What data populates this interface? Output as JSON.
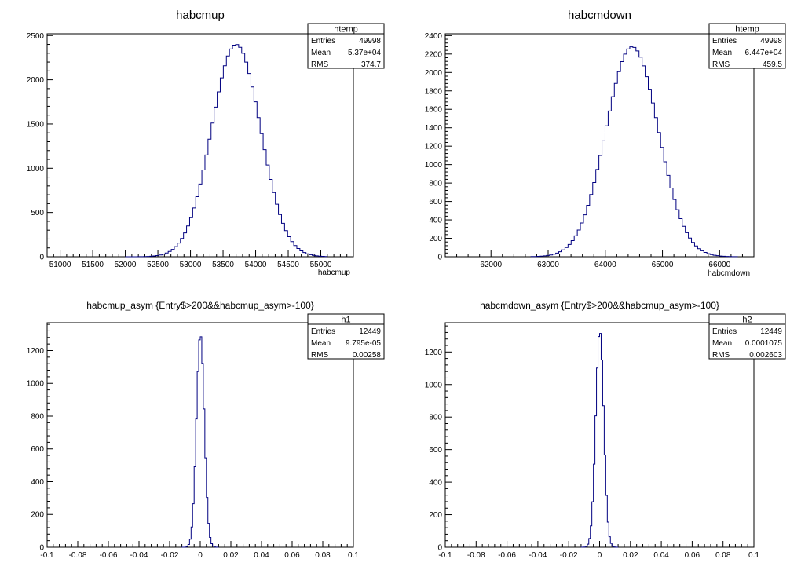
{
  "chart_data": [
    {
      "type": "bar",
      "title": "habcmup",
      "xlabel": "habcmup",
      "ylabel": "",
      "xlim": [
        50800,
        55500
      ],
      "ylim": [
        0,
        2520
      ],
      "xticks": [
        51000,
        51500,
        52000,
        52500,
        53000,
        53500,
        54000,
        54500,
        55000
      ],
      "xtick_labels": [
        "51000",
        "51500",
        "52000",
        "52500",
        "53000",
        "53500",
        "54000",
        "54500",
        "55000"
      ],
      "yticks": [
        0,
        500,
        1000,
        1500,
        2000,
        2500
      ],
      "ytick_labels": [
        "0",
        "500",
        "1000",
        "1500",
        "2000",
        "2500"
      ],
      "grid": false,
      "legend": "none",
      "line_color": "#000080",
      "stats": {
        "name": "htemp",
        "rows": [
          {
            "label": "Entries",
            "value": "49998"
          },
          {
            "label": "Mean",
            "value": "5.37e+04"
          },
          {
            "label": "RMS",
            "value": "374.7"
          }
        ]
      },
      "histogram": {
        "mean": 53700,
        "rms": 374.7,
        "peak": 2400,
        "bin_width": 47,
        "x_min": 52000,
        "x_max": 55100
      }
    },
    {
      "type": "bar",
      "title": "habcmdown",
      "xlabel": "habcmdown",
      "ylabel": "",
      "xlim": [
        61200,
        66600
      ],
      "ylim": [
        0,
        2420
      ],
      "xticks": [
        62000,
        63000,
        64000,
        65000,
        66000
      ],
      "xtick_labels": [
        "62000",
        "63000",
        "64000",
        "65000",
        "66000"
      ],
      "yticks": [
        0,
        200,
        400,
        600,
        800,
        1000,
        1200,
        1400,
        1600,
        1800,
        2000,
        2200,
        2400
      ],
      "ytick_labels": [
        "0",
        "200",
        "400",
        "600",
        "800",
        "1000",
        "1200",
        "1400",
        "1600",
        "1800",
        "2000",
        "2200",
        "2400"
      ],
      "grid": false,
      "legend": "none",
      "line_color": "#000080",
      "stats": {
        "name": "htemp",
        "rows": [
          {
            "label": "Entries",
            "value": "49998"
          },
          {
            "label": "Mean",
            "value": "6.447e+04"
          },
          {
            "label": "RMS",
            "value": "459.5"
          }
        ]
      },
      "histogram": {
        "mean": 64470,
        "rms": 459.5,
        "peak": 2280,
        "bin_width": 54,
        "x_min": 62700,
        "x_max": 66300
      }
    },
    {
      "type": "bar",
      "title": "habcmup_asym {Entry$>200&&habcmup_asym>-100}",
      "xlabel": "",
      "ylabel": "",
      "xlim": [
        -0.1,
        0.1
      ],
      "ylim": [
        0,
        1370
      ],
      "xticks": [
        -0.1,
        -0.08,
        -0.06,
        -0.04,
        -0.02,
        0,
        0.02,
        0.04,
        0.06,
        0.08,
        0.1
      ],
      "xtick_labels": [
        "-0.1",
        "-0.08",
        "-0.06",
        "-0.04",
        "-0.02",
        "0",
        "0.02",
        "0.04",
        "0.06",
        "0.08",
        "0.1"
      ],
      "yticks": [
        0,
        200,
        400,
        600,
        800,
        1000,
        1200
      ],
      "ytick_labels": [
        "0",
        "200",
        "400",
        "600",
        "800",
        "1000",
        "1200"
      ],
      "grid": false,
      "legend": "none",
      "line_color": "#000080",
      "stats": {
        "name": "h1",
        "rows": [
          {
            "label": "Entries",
            "value": "12449"
          },
          {
            "label": "Mean",
            "value": "9.795e-05"
          },
          {
            "label": "RMS",
            "value": "0.00258"
          }
        ]
      },
      "histogram": {
        "mean": 0.0001,
        "rms": 0.00258,
        "peak": 1300,
        "bin_width": 0.001,
        "x_min": -0.012,
        "x_max": 0.012
      }
    },
    {
      "type": "bar",
      "title": "habcmdown_asym {Entry$>200&&habcmup_asym>-100}",
      "xlabel": "",
      "ylabel": "",
      "xlim": [
        -0.1,
        0.1
      ],
      "ylim": [
        0,
        1380
      ],
      "xticks": [
        -0.1,
        -0.08,
        -0.06,
        -0.04,
        -0.02,
        0,
        0.02,
        0.04,
        0.06,
        0.08,
        0.1
      ],
      "xtick_labels": [
        "-0.1",
        "-0.08",
        "-0.06",
        "-0.04",
        "-0.02",
        "0",
        "0.02",
        "0.04",
        "0.06",
        "0.08",
        "0.1"
      ],
      "yticks": [
        0,
        200,
        400,
        600,
        800,
        1000,
        1200
      ],
      "ytick_labels": [
        "0",
        "200",
        "400",
        "600",
        "800",
        "1000",
        "1200"
      ],
      "grid": false,
      "legend": "none",
      "line_color": "#000080",
      "stats": {
        "name": "h2",
        "rows": [
          {
            "label": "Entries",
            "value": "12449"
          },
          {
            "label": "Mean",
            "value": "0.0001075"
          },
          {
            "label": "RMS",
            "value": "0.002603"
          }
        ]
      },
      "histogram": {
        "mean": 0.0001,
        "rms": 0.002603,
        "peak": 1330,
        "bin_width": 0.001,
        "x_min": -0.012,
        "x_max": 0.012
      }
    }
  ]
}
